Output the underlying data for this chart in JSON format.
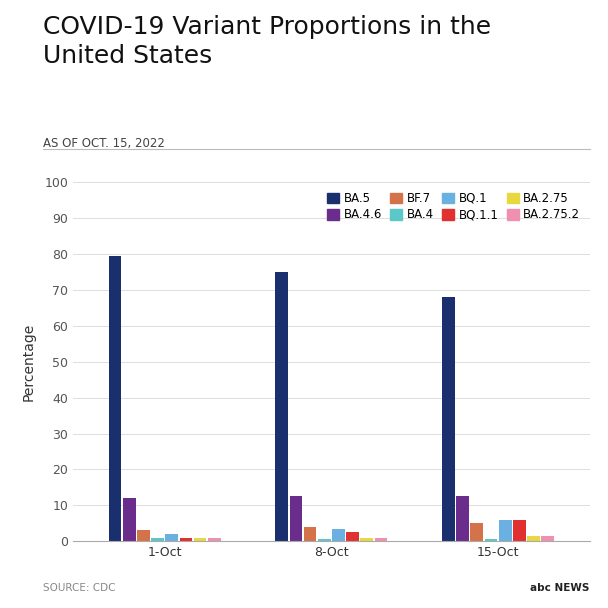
{
  "title": "COVID-19 Variant Proportions in the\nUnited States",
  "subtitle": "AS OF OCT. 15, 2022",
  "ylabel": "Percentage",
  "source": "SOURCE: CDC",
  "background_color": "#ffffff",
  "ylim": [
    0,
    100
  ],
  "yticks": [
    0,
    10,
    20,
    30,
    40,
    50,
    60,
    70,
    80,
    90,
    100
  ],
  "dates": [
    "1-Oct",
    "8-Oct",
    "15-Oct"
  ],
  "variants": [
    "BA.5",
    "BA.4.6",
    "BF.7",
    "BA.4",
    "BQ.1",
    "BQ.1.1",
    "BA.2.75",
    "BA.2.75.2"
  ],
  "colors": [
    "#1a2f6e",
    "#6b2d8b",
    "#d4724a",
    "#5bc8c8",
    "#6ab0e0",
    "#e03030",
    "#e8d840",
    "#f090b0"
  ],
  "data": {
    "BA.5": [
      79.5,
      75.0,
      68.0
    ],
    "BA.4.6": [
      12.0,
      12.5,
      12.5
    ],
    "BF.7": [
      3.0,
      4.0,
      5.0
    ],
    "BA.4": [
      1.0,
      0.5,
      0.5
    ],
    "BQ.1": [
      2.0,
      3.5,
      6.0
    ],
    "BQ.1.1": [
      1.0,
      2.5,
      6.0
    ],
    "BA.2.75": [
      1.0,
      1.0,
      1.5
    ],
    "BA.2.75.2": [
      0.8,
      1.0,
      1.5
    ]
  },
  "legend_row1": [
    "BA.5",
    "BA.4.6",
    "BF.7",
    "BA.4"
  ],
  "legend_row2": [
    "BQ.1",
    "BQ.1.1",
    "BA.2.75",
    "BA.2.75.2"
  ],
  "title_fontsize": 18,
  "subtitle_fontsize": 8.5,
  "ylabel_fontsize": 10,
  "tick_fontsize": 9,
  "legend_fontsize": 8.5,
  "source_fontsize": 7.5
}
